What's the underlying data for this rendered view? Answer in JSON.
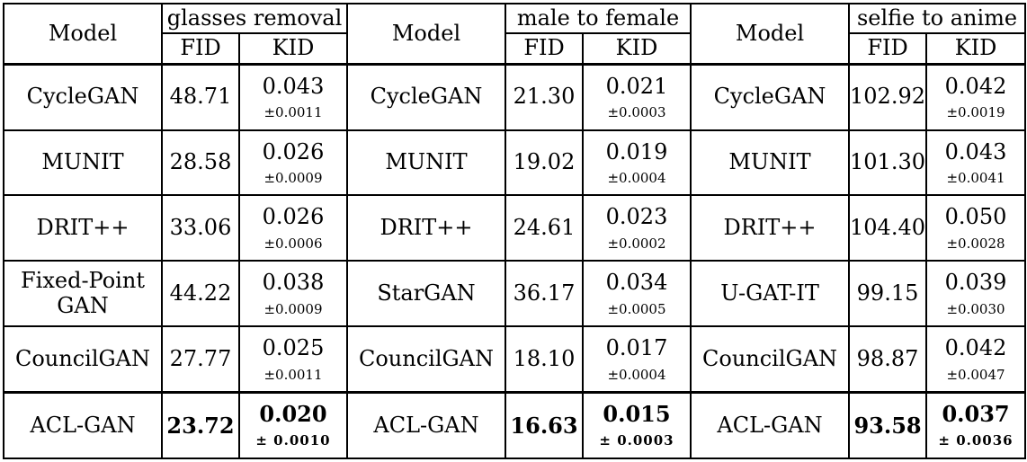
{
  "header": {
    "model_label": "Model",
    "groups": [
      "glasses removal",
      "male to female",
      "selfie to anime"
    ],
    "fid_label": "FID",
    "kid_label": "KID"
  },
  "rows": [
    {
      "g1": {
        "model": "CycleGAN",
        "fid": "48.71",
        "kid": "0.043",
        "err": "±0.0011"
      },
      "g2": {
        "model": "CycleGAN",
        "fid": "21.30",
        "kid": "0.021",
        "err": "±0.0003"
      },
      "g3": {
        "model": "CycleGAN",
        "fid": "102.92",
        "kid": "0.042",
        "err": "±0.0019"
      }
    },
    {
      "g1": {
        "model": "MUNIT",
        "fid": "28.58",
        "kid": "0.026",
        "err": "±0.0009"
      },
      "g2": {
        "model": "MUNIT",
        "fid": "19.02",
        "kid": "0.019",
        "err": "±0.0004"
      },
      "g3": {
        "model": "MUNIT",
        "fid": "101.30",
        "kid": "0.043",
        "err": "±0.0041"
      }
    },
    {
      "g1": {
        "model": "DRIT++",
        "fid": "33.06",
        "kid": "0.026",
        "err": "±0.0006"
      },
      "g2": {
        "model": "DRIT++",
        "fid": "24.61",
        "kid": "0.023",
        "err": "±0.0002"
      },
      "g3": {
        "model": "DRIT++",
        "fid": "104.40",
        "kid": "0.050",
        "err": "±0.0028"
      }
    },
    {
      "g1": {
        "model_line1": "Fixed-Point",
        "model_line2": "GAN",
        "fid": "44.22",
        "kid": "0.038",
        "err": "±0.0009"
      },
      "g2": {
        "model": "StarGAN",
        "fid": "36.17",
        "kid": "0.034",
        "err": "±0.0005"
      },
      "g3": {
        "model": "U-GAT-IT",
        "fid": "99.15",
        "kid": "0.039",
        "err": "±0.0030"
      }
    },
    {
      "g1": {
        "model": "CouncilGAN",
        "fid": "27.77",
        "kid": "0.025",
        "err": "±0.0011"
      },
      "g2": {
        "model": "CouncilGAN",
        "fid": "18.10",
        "kid": "0.017",
        "err": "±0.0004"
      },
      "g3": {
        "model": "CouncilGAN",
        "fid": "98.87",
        "kid": "0.042",
        "err": "±0.0047"
      }
    },
    {
      "g1": {
        "model": "ACL-GAN",
        "fid": "23.72",
        "kid": "0.020",
        "err": "± 0.0010"
      },
      "g2": {
        "model": "ACL-GAN",
        "fid": "16.63",
        "kid": "0.015",
        "err": "± 0.0003"
      },
      "g3": {
        "model": "ACL-GAN",
        "fid": "93.58",
        "kid": "0.037",
        "err": "± 0.0036"
      }
    }
  ]
}
